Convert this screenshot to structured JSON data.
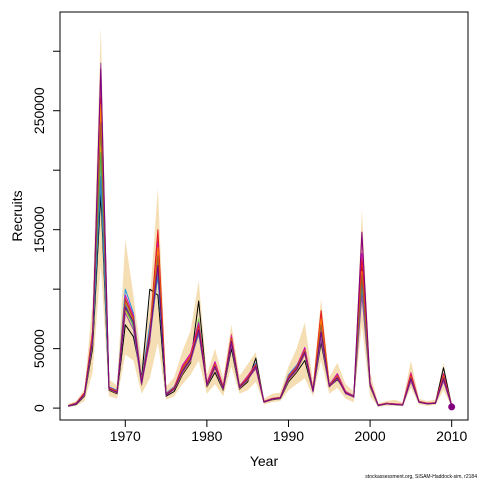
{
  "chart_data": {
    "type": "line",
    "xlabel": "Year",
    "ylabel": "Recruits",
    "xlim": [
      1962,
      2012
    ],
    "ylim": [
      -10000,
      333000
    ],
    "x_ticks": [
      1970,
      1980,
      1990,
      2000,
      2010
    ],
    "y_ticks": [
      0,
      50000,
      100000,
      150000,
      200000,
      250000,
      300000
    ],
    "y_tick_labels": [
      "0",
      "50000",
      "",
      "150000",
      "",
      "250000",
      ""
    ],
    "footnote": "stockassessment.org, SISAM-Haddock-sim, r2184",
    "x": [
      1963,
      1964,
      1965,
      1966,
      1967,
      1968,
      1969,
      1970,
      1971,
      1972,
      1973,
      1974,
      1975,
      1976,
      1977,
      1978,
      1979,
      1980,
      1981,
      1982,
      1983,
      1984,
      1985,
      1986,
      1987,
      1988,
      1989,
      1990,
      1991,
      1992,
      1993,
      1994,
      1995,
      1996,
      1997,
      1998,
      1999,
      2000,
      2001,
      2002,
      2003,
      2004,
      2005,
      2006,
      2007,
      2008,
      2009,
      2010
    ],
    "band": {
      "color": "#f5deb3",
      "lower": [
        1000,
        2000,
        6000,
        30000,
        120000,
        10000,
        8000,
        45000,
        40000,
        12000,
        25000,
        55000,
        7000,
        10000,
        20000,
        28000,
        40000,
        12000,
        20000,
        10000,
        35000,
        12000,
        15000,
        22000,
        3000,
        5000,
        6000,
        15000,
        20000,
        25000,
        10000,
        40000,
        12000,
        17000,
        8000,
        5000,
        70000,
        10000,
        1000,
        2000,
        2000,
        1500,
        17000,
        3000,
        2000,
        2500,
        15000,
        1000
      ],
      "upper": [
        3500,
        6000,
        16000,
        90000,
        320000,
        24000,
        19000,
        142000,
        95000,
        40000,
        90000,
        185000,
        18000,
        26000,
        48000,
        65000,
        107000,
        28000,
        50000,
        25000,
        70000,
        27000,
        37000,
        47000,
        8000,
        12000,
        13000,
        35000,
        50000,
        72000,
        22000,
        92000,
        26000,
        38000,
        20000,
        14000,
        167000,
        30000,
        4000,
        6000,
        7000,
        5000,
        40000,
        8000,
        6000,
        7000,
        38000,
        3000
      ]
    },
    "series": [
      {
        "color": "#000000",
        "values": [
          1500,
          3000,
          10000,
          50000,
          180000,
          15000,
          12000,
          70000,
          60000,
          25000,
          100000,
          95000,
          10000,
          14000,
          28000,
          38000,
          90000,
          18000,
          30000,
          15000,
          50000,
          16000,
          22000,
          42000,
          5000,
          7000,
          8000,
          22000,
          30000,
          40000,
          14000,
          55000,
          18000,
          24000,
          14000,
          9000,
          120000,
          18000,
          2000,
          3500,
          3000,
          2500,
          28000,
          5000,
          3500,
          4000,
          34000,
          2000
        ]
      },
      {
        "color": "#df536b",
        "values": [
          1800,
          4000,
          11000,
          58000,
          270000,
          16000,
          13000,
          85000,
          75000,
          22000,
          55000,
          145000,
          11000,
          16000,
          35000,
          45000,
          70000,
          20000,
          38000,
          17000,
          62000,
          18000,
          25000,
          33000,
          5500,
          8000,
          9000,
          26000,
          34000,
          50000,
          15000,
          78000,
          19000,
          27000,
          13000,
          9500,
          145000,
          20000,
          2500,
          4000,
          3500,
          3000,
          30000,
          5500,
          4000,
          4500,
          27000,
          2500
        ]
      },
      {
        "color": "#61d04f",
        "values": [
          1900,
          3500,
          12000,
          60000,
          230000,
          17000,
          14000,
          90000,
          68000,
          20000,
          62000,
          130000,
          12000,
          17000,
          30000,
          40000,
          75000,
          19000,
          34000,
          16000,
          55000,
          17000,
          24000,
          36000,
          5000,
          7500,
          8500,
          24000,
          32000,
          46000,
          14000,
          68000,
          18000,
          26000,
          12000,
          10000,
          110000,
          19000,
          2300,
          3800,
          3200,
          2700,
          26000,
          5000,
          3800,
          4200,
          25000,
          2200
        ]
      },
      {
        "color": "#2297e6",
        "values": [
          2000,
          4200,
          12500,
          62000,
          190000,
          18000,
          15000,
          100000,
          80000,
          24000,
          70000,
          110000,
          12500,
          18000,
          33000,
          42000,
          62000,
          21000,
          36000,
          18000,
          58000,
          19000,
          26000,
          38000,
          5200,
          7800,
          8800,
          28000,
          36000,
          48000,
          15500,
          62000,
          20000,
          28000,
          13500,
          10500,
          100000,
          21000,
          2400,
          3900,
          3400,
          2800,
          24000,
          5200,
          3900,
          4300,
          24000,
          2300
        ]
      },
      {
        "color": "#28e2e5",
        "values": [
          1700,
          3800,
          11500,
          56000,
          200000,
          16500,
          13500,
          88000,
          72000,
          21000,
          58000,
          120000,
          11500,
          16500,
          31000,
          41000,
          66000,
          19500,
          35000,
          16500,
          56000,
          17500,
          24500,
          35000,
          5100,
          7600,
          8600,
          25000,
          33000,
          47000,
          14500,
          65000,
          18500,
          25500,
          12800,
          9800,
          105000,
          19500,
          2200,
          3700,
          3100,
          2600,
          25000,
          5100,
          3700,
          4100,
          26000,
          2100
        ]
      },
      {
        "color": "#cd0bbc",
        "values": [
          2100,
          4500,
          13000,
          65000,
          250000,
          17500,
          14500,
          95000,
          78000,
          23000,
          65000,
          140000,
          12000,
          17500,
          36000,
          46000,
          72000,
          21500,
          39000,
          18500,
          60000,
          18500,
          27000,
          37000,
          5600,
          8200,
          9200,
          27000,
          35000,
          51000,
          15800,
          72000,
          19500,
          29000,
          14000,
          10200,
          130000,
          21500,
          2600,
          4100,
          3600,
          3100,
          29000,
          5600,
          4100,
          4600,
          29000,
          2400
        ]
      },
      {
        "color": "#f5c710",
        "values": [
          1600,
          3600,
          10500,
          54000,
          220000,
          15500,
          12500,
          82000,
          70000,
          19000,
          60000,
          125000,
          11000,
          15500,
          29000,
          39000,
          64000,
          18500,
          33000,
          15500,
          54000,
          16500,
          23500,
          34000,
          4900,
          7300,
          8300,
          23000,
          31000,
          45000,
          13800,
          60000,
          17500,
          25000,
          12200,
          9200,
          98000,
          18500,
          2100,
          3600,
          3000,
          2500,
          23000,
          4900,
          3600,
          4000,
          23000,
          2000
        ]
      },
      {
        "color": "#9e9e9e",
        "values": [
          1750,
          3900,
          11800,
          57000,
          210000,
          16200,
          13200,
          86000,
          73000,
          21500,
          61000,
          118000,
          11300,
          16200,
          32000,
          41500,
          68000,
          19800,
          35500,
          16800,
          57000,
          17800,
          24800,
          35500,
          5150,
          7700,
          8700,
          25500,
          33500,
          47500,
          14800,
          66000,
          18800,
          26000,
          13000,
          9900,
          108000,
          19800,
          2250,
          3750,
          3150,
          2650,
          25500,
          5150,
          3750,
          4150,
          25500,
          2150
        ]
      },
      {
        "color": "#e41a1c",
        "values": [
          2050,
          4300,
          12800,
          63000,
          260000,
          17200,
          14200,
          92000,
          76000,
          22500,
          64000,
          150000,
          11800,
          17200,
          34000,
          44000,
          69000,
          20500,
          37000,
          17800,
          59000,
          18200,
          25800,
          36500,
          5450,
          8000,
          9000,
          26500,
          34500,
          49000,
          15200,
          82000,
          19200,
          27500,
          13200,
          10000,
          125000,
          20500,
          2450,
          3950,
          3450,
          2950,
          28000,
          5450,
          3950,
          4450,
          28000,
          2350
        ]
      },
      {
        "color": "#ff7f00",
        "values": [
          1850,
          4100,
          12200,
          61000,
          255000,
          16800,
          13800,
          89000,
          74000,
          21800,
          62500,
          135000,
          11600,
          16800,
          33000,
          43000,
          67000,
          20000,
          36500,
          17200,
          58000,
          18000,
          25200,
          35800,
          5300,
          7900,
          8900,
          26000,
          34000,
          48500,
          15000,
          75000,
          19000,
          27000,
          13100,
          9950,
          115000,
          20000,
          2350,
          3850,
          3250,
          2750,
          26500,
          5300,
          3850,
          4250,
          26500,
          2250
        ]
      },
      {
        "color": "#4daf4a",
        "values": [
          1950,
          3700,
          11200,
          58500,
          215000,
          16400,
          13400,
          84000,
          69000,
          20500,
          59000,
          122000,
          11200,
          16400,
          30500,
          40500,
          65000,
          19200,
          34500,
          16200,
          55500,
          17200,
          24200,
          34800,
          5050,
          7450,
          8450,
          24500,
          32500,
          46500,
          14200,
          63000,
          18200,
          25800,
          12600,
          9600,
          102000,
          19200,
          2150,
          3650,
          3050,
          2550,
          24500,
          5050,
          3650,
          4050,
          24500,
          2050
        ]
      },
      {
        "color": "#984ea3",
        "values": [
          1650,
          3400,
          10800,
          55000,
          290000,
          15800,
          12800,
          80000,
          66000,
          19500,
          57000,
          115000,
          10800,
          15800,
          29500,
          39500,
          63000,
          18800,
          33500,
          15800,
          53000,
          16800,
          23800,
          33500,
          4950,
          7350,
          8350,
          23500,
          31500,
          45500,
          13500,
          58000,
          17800,
          24800,
          12000,
          9300,
          95000,
          18800,
          2050,
          3550,
          2950,
          2450,
          22500,
          4950,
          3550,
          3950,
          22500,
          1950
        ]
      },
      {
        "color": "#377eb8",
        "values": [
          1780,
          3850,
          11600,
          56500,
          195000,
          16300,
          13300,
          87000,
          71000,
          21200,
          60500,
          112000,
          11400,
          16300,
          31500,
          41200,
          64500,
          19600,
          35200,
          16600,
          56500,
          17600,
          24600,
          35200,
          5120,
          7650,
          8650,
          25200,
          33200,
          47200,
          14600,
          64000,
          18600,
          25900,
          12900,
          9850,
          106000,
          19600,
          2200,
          3720,
          3120,
          2620,
          25200,
          5120,
          3720,
          4120,
          25200,
          2120
        ]
      },
      {
        "color": "#a65628",
        "values": [
          1820,
          3950,
          11900,
          59000,
          240000,
          16600,
          13600,
          91000,
          75000,
          22000,
          63000,
          128000,
          11700,
          16600,
          32500,
          42500,
          66500,
          19900,
          35800,
          17000,
          57500,
          17900,
          25000,
          35600,
          5250,
          7800,
          8800,
          25800,
          33800,
          48000,
          14900,
          70000,
          18900,
          26500,
          13050,
          9900,
          112000,
          19900,
          2300,
          3800,
          3200,
          2700,
          26000,
          5250,
          3800,
          4200,
          26000,
          2200
        ]
      },
      {
        "color": "#800080",
        "values": [
          1700,
          3700,
          11400,
          57500,
          285000,
          16100,
          13100,
          85000,
          72500,
          21000,
          60000,
          120000,
          11200,
          16100,
          31000,
          41000,
          66000,
          19400,
          35000,
          16400,
          56000,
          17400,
          24400,
          35000,
          5080,
          7580,
          8580,
          24800,
          32800,
          47000,
          14400,
          64000,
          18400,
          25600,
          12800,
          9700,
          148000,
          19400,
          2180,
          3680,
          3080,
          2580,
          24800,
          5080,
          3680,
          4080,
          24800,
          2000
        ]
      }
    ],
    "end_point": {
      "x": 2010,
      "y": 1000,
      "color": "#800080"
    }
  }
}
